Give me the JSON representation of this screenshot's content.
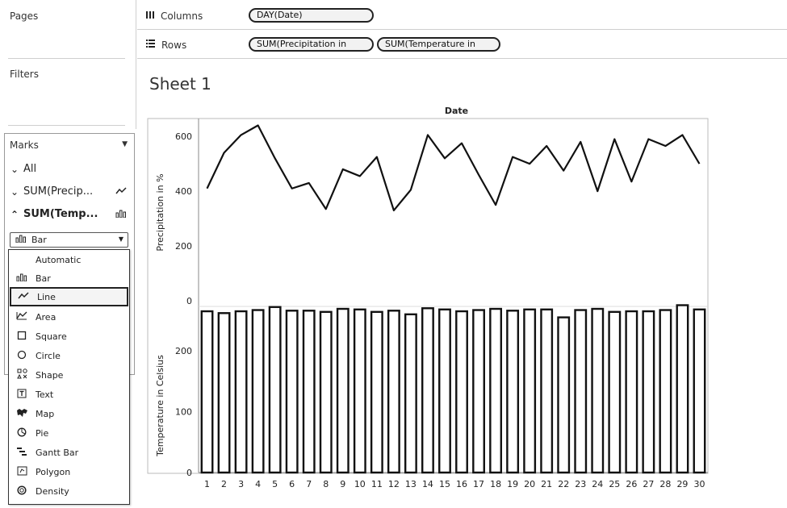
{
  "left_pane": {
    "pages_title": "Pages",
    "filters_title": "Filters",
    "marks": {
      "title": "Marks",
      "rows": [
        {
          "label": "All",
          "chevron": "v"
        },
        {
          "label": "SUM(Precip...",
          "chevron": "v",
          "icon": "line-icon"
        },
        {
          "label": "SUM(Temp...",
          "chevron": "^",
          "icon": "bar-icon"
        }
      ],
      "mark_type_selected": "Bar",
      "mark_type_options": [
        {
          "label": "Automatic",
          "icon": ""
        },
        {
          "label": "Bar",
          "icon": "bar-icon"
        },
        {
          "label": "Line",
          "icon": "line-icon"
        },
        {
          "label": "Area",
          "icon": "area-icon"
        },
        {
          "label": "Square",
          "icon": "square-icon"
        },
        {
          "label": "Circle",
          "icon": "circle-icon"
        },
        {
          "label": "Shape",
          "icon": "shape-icon"
        },
        {
          "label": "Text",
          "icon": "text-icon"
        },
        {
          "label": "Map",
          "icon": "map-icon"
        },
        {
          "label": "Pie",
          "icon": "pie-icon"
        },
        {
          "label": "Gantt Bar",
          "icon": "gantt-icon"
        },
        {
          "label": "Polygon",
          "icon": "polygon-icon"
        },
        {
          "label": "Density",
          "icon": "density-icon"
        }
      ],
      "highlighted_option": "Line"
    }
  },
  "shelves": {
    "columns_label": "Columns",
    "columns_pills": [
      "DAY(Date)"
    ],
    "rows_label": "Rows",
    "rows_pills": [
      "SUM(Precipitation in",
      "SUM(Temperature in"
    ]
  },
  "sheet": {
    "title": "Sheet 1"
  },
  "chart_data": {
    "type": "line+bar",
    "column_header": "Date",
    "categories": [
      "1",
      "2",
      "3",
      "4",
      "5",
      "6",
      "7",
      "8",
      "9",
      "10",
      "11",
      "12",
      "13",
      "14",
      "15",
      "16",
      "17",
      "18",
      "19",
      "20",
      "21",
      "22",
      "23",
      "24",
      "25",
      "26",
      "27",
      "28",
      "29",
      "30"
    ],
    "top_pane": {
      "type": "line",
      "ylabel": "Precipitation in %",
      "yticks": [
        "600",
        "400",
        "200",
        "0"
      ],
      "ylim": [
        -20,
        665
      ],
      "values": [
        410,
        540,
        605,
        640,
        520,
        410,
        430,
        335,
        480,
        455,
        525,
        330,
        405,
        605,
        520,
        575,
        460,
        350,
        525,
        500,
        565,
        475,
        580,
        400,
        590,
        435,
        590,
        565,
        605,
        500
      ]
    },
    "bottom_pane": {
      "type": "bar",
      "ylabel": "Temperature in Celsius",
      "yticks": [
        "200",
        "100",
        "0"
      ],
      "ylim": [
        0,
        273
      ],
      "values": [
        265,
        262,
        265,
        267,
        272,
        266,
        266,
        264,
        269,
        268,
        264,
        266,
        260,
        270,
        268,
        265,
        267,
        269,
        266,
        268,
        268,
        255,
        267,
        269,
        264,
        265,
        265,
        267,
        275,
        268
      ]
    }
  }
}
